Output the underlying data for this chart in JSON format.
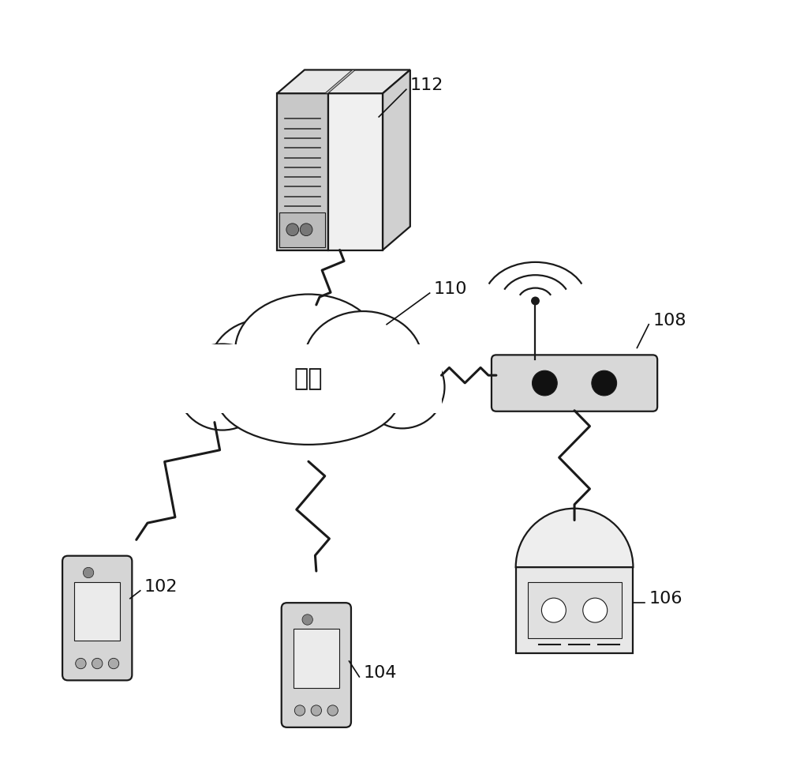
{
  "bg_color": "#ffffff",
  "label_112": "112",
  "label_110": "110",
  "label_108": "108",
  "label_106": "106",
  "label_104": "104",
  "label_102": "102",
  "network_label": "网络",
  "line_color": "#1a1a1a",
  "fill_light": "#f0f0f0",
  "fill_mid": "#d8d8d8",
  "fill_dark": "#aaaaaa"
}
